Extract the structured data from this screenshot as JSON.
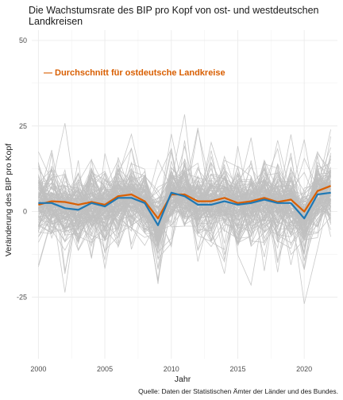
{
  "chart_data": {
    "type": "line",
    "title_line1": "Die Wachstumsrate des BIP pro Kopf von ost- und westdeutschen",
    "title_line2": "Landkreisen",
    "xlabel": "Jahr",
    "ylabel": "Veränderung des BIP pro Kopf",
    "caption": "Quelle: Daten der Statistischen Ämter der Länder und des Bundes.",
    "annotation": "— Durchschnitt für ostdeutsche Landkreise",
    "xlim": [
      1999.5,
      2022.5
    ],
    "ylim": [
      -43,
      53
    ],
    "x_ticks": [
      2000,
      2005,
      2010,
      2015,
      2020
    ],
    "y_ticks": [
      -25,
      0,
      25,
      50
    ],
    "x_tick_labels": [
      "2000",
      "2005",
      "2010",
      "2015",
      "2020"
    ],
    "y_tick_labels": [
      "-25",
      "0",
      "25",
      "50"
    ],
    "grid": true,
    "colors": {
      "east_average": "#d95f02",
      "west_average": "#1f78b4",
      "counties": "#c0c0c0"
    },
    "x": [
      2000,
      2001,
      2002,
      2003,
      2004,
      2005,
      2006,
      2007,
      2008,
      2009,
      2010,
      2011,
      2012,
      2013,
      2014,
      2015,
      2016,
      2017,
      2018,
      2019,
      2020,
      2021,
      2022
    ],
    "series": [
      {
        "role": "east_average",
        "values": [
          2.0,
          3.0,
          2.8,
          2.0,
          2.8,
          2.0,
          4.5,
          5.0,
          3.0,
          -2.0,
          5.0,
          5.0,
          3.0,
          3.0,
          4.0,
          2.5,
          3.0,
          4.0,
          2.8,
          3.5,
          0.0,
          6.0,
          7.5
        ]
      },
      {
        "role": "west_average",
        "values": [
          2.5,
          2.5,
          1.0,
          0.5,
          2.5,
          1.5,
          4.0,
          4.0,
          2.5,
          -4.0,
          5.5,
          4.5,
          2.0,
          2.0,
          3.0,
          2.0,
          2.5,
          3.5,
          2.5,
          2.5,
          -2.0,
          5.0,
          5.5
        ]
      }
    ]
  }
}
